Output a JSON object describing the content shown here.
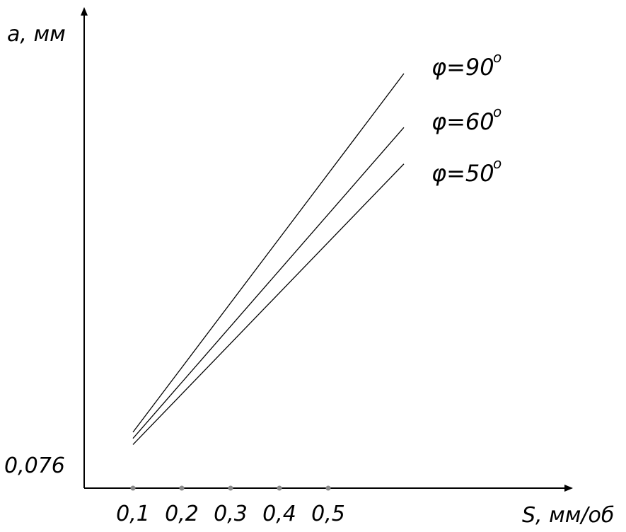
{
  "chart_data": {
    "type": "line",
    "title": "",
    "xlabel": "S, мм/об",
    "ylabel": "a, мм",
    "x_ticks": [
      "0,1",
      "0,2",
      "0,3",
      "0,4",
      "0,5"
    ],
    "xlim": [
      0,
      0.9
    ],
    "ylim_label": "0,076",
    "series": [
      {
        "name": "φ=90",
        "sup": "o",
        "x": [
          0.1,
          0.655
        ],
        "y": [
          0.135,
          1.0
        ]
      },
      {
        "name": "φ=60",
        "sup": "o",
        "x": [
          0.1,
          0.655
        ],
        "y": [
          0.12,
          0.87
        ]
      },
      {
        "name": "φ=50",
        "sup": "o",
        "x": [
          0.1,
          0.655
        ],
        "y": [
          0.105,
          0.782
        ]
      }
    ],
    "grid": false,
    "legend": "inline-right"
  }
}
